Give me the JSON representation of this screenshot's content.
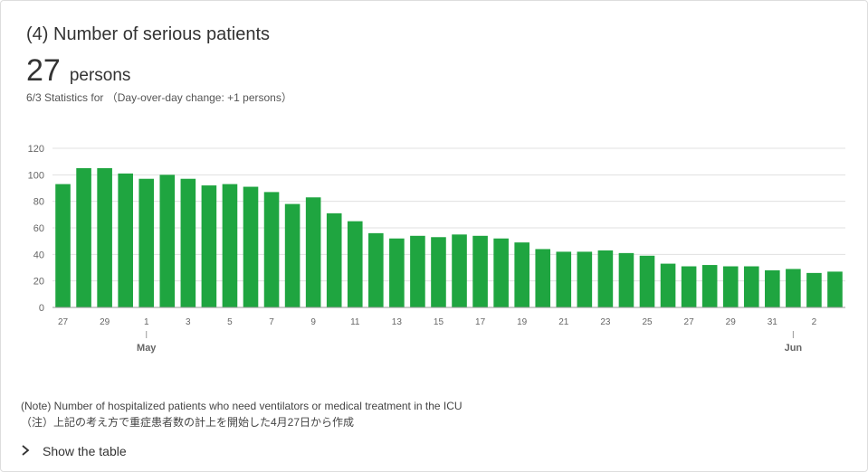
{
  "header": {
    "title": "(4) Number of serious patients",
    "value": "27",
    "unit": "persons",
    "stat_date": "6/3",
    "stat_text": "Statistics for",
    "change_text": "（Day-over-day change: +1 persons）"
  },
  "notes": [
    "(Note) Number of hospitalized patients who need ventilators or medical treatment in the ICU",
    "（注）上記の考え方で重症患者数の計上を開始した4月27日から作成"
  ],
  "toggle": {
    "label": "Show the table",
    "icon": "chevron-right-icon"
  },
  "colors": {
    "bar": "#1fa540",
    "grid": "#e0e0e0",
    "axis_text": "#666666"
  },
  "chart_data": {
    "type": "bar",
    "title": "",
    "xlabel": "",
    "ylabel": "",
    "ylim": [
      0,
      120
    ],
    "yticks": [
      0,
      20,
      40,
      60,
      80,
      100,
      120
    ],
    "grid": true,
    "categories": [
      "4/27",
      "4/28",
      "4/29",
      "4/30",
      "5/1",
      "5/2",
      "5/3",
      "5/4",
      "5/5",
      "5/6",
      "5/7",
      "5/8",
      "5/9",
      "5/10",
      "5/11",
      "5/12",
      "5/13",
      "5/14",
      "5/15",
      "5/16",
      "5/17",
      "5/18",
      "5/19",
      "5/20",
      "5/21",
      "5/22",
      "5/23",
      "5/24",
      "5/25",
      "5/26",
      "5/27",
      "5/28",
      "5/29",
      "5/30",
      "5/31",
      "6/1",
      "6/2",
      "6/3"
    ],
    "tick_labels": [
      "27",
      "29",
      "1",
      "3",
      "5",
      "7",
      "9",
      "11",
      "13",
      "15",
      "17",
      "19",
      "21",
      "23",
      "25",
      "27",
      "29",
      "31",
      "2"
    ],
    "tick_indices": [
      0,
      2,
      4,
      6,
      8,
      10,
      12,
      14,
      16,
      18,
      20,
      22,
      24,
      26,
      28,
      30,
      32,
      34,
      36
    ],
    "month_labels": [
      "May",
      "Jun"
    ],
    "month_indices": [
      4,
      35
    ],
    "values": [
      93,
      105,
      105,
      101,
      97,
      100,
      97,
      92,
      93,
      91,
      87,
      78,
      83,
      71,
      65,
      56,
      52,
      54,
      53,
      55,
      54,
      52,
      49,
      44,
      42,
      42,
      43,
      41,
      39,
      33,
      31,
      32,
      31,
      31,
      28,
      29,
      26,
      27
    ]
  }
}
